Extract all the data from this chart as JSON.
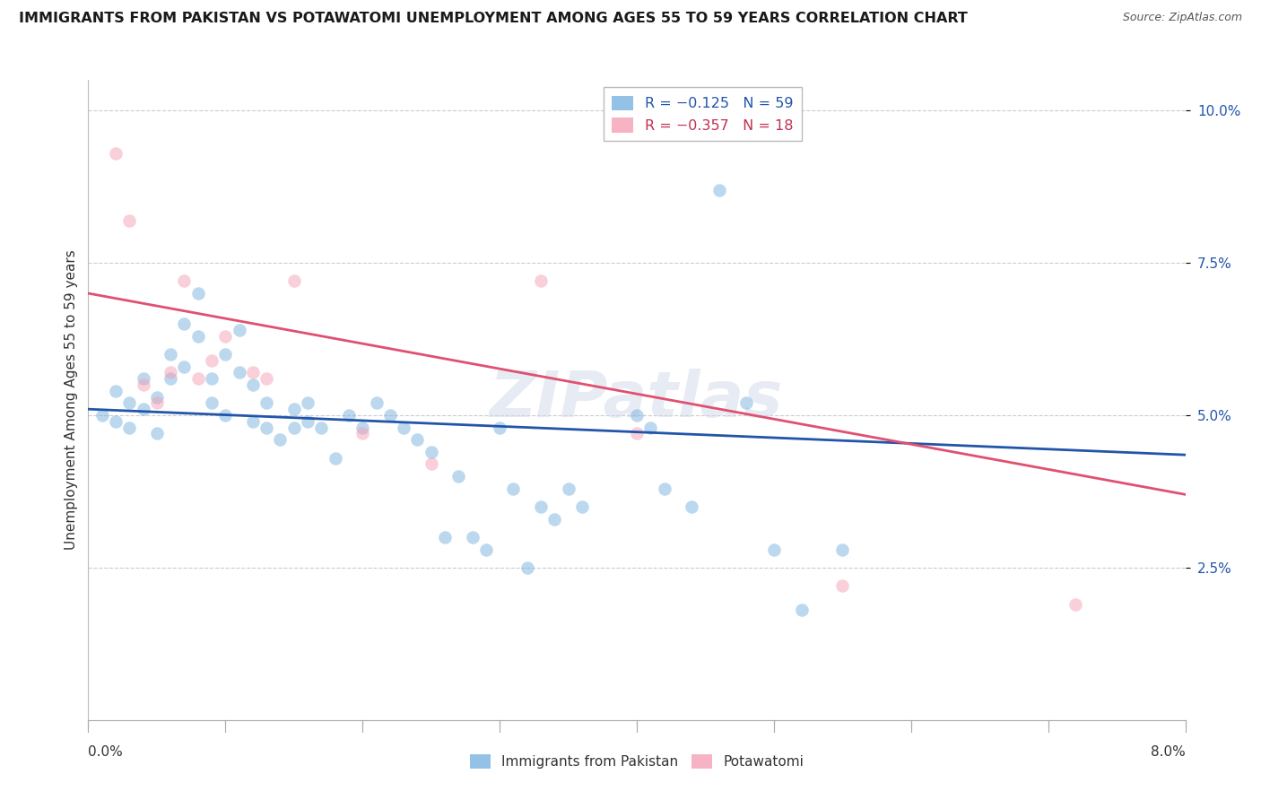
{
  "title": "IMMIGRANTS FROM PAKISTAN VS POTAWATOMI UNEMPLOYMENT AMONG AGES 55 TO 59 YEARS CORRELATION CHART",
  "source": "Source: ZipAtlas.com",
  "ylabel": "Unemployment Among Ages 55 to 59 years",
  "xmin": 0.0,
  "xmax": 0.08,
  "ymin": 0.0,
  "ymax": 0.105,
  "yticks": [
    0.025,
    0.05,
    0.075,
    0.1
  ],
  "ytick_labels": [
    "2.5%",
    "5.0%",
    "7.5%",
    "10.0%"
  ],
  "watermark": "ZIPatlas",
  "blue_scatter": [
    [
      0.001,
      0.05
    ],
    [
      0.002,
      0.054
    ],
    [
      0.002,
      0.049
    ],
    [
      0.003,
      0.052
    ],
    [
      0.003,
      0.048
    ],
    [
      0.004,
      0.056
    ],
    [
      0.004,
      0.051
    ],
    [
      0.005,
      0.053
    ],
    [
      0.005,
      0.047
    ],
    [
      0.006,
      0.06
    ],
    [
      0.006,
      0.056
    ],
    [
      0.007,
      0.065
    ],
    [
      0.007,
      0.058
    ],
    [
      0.008,
      0.07
    ],
    [
      0.008,
      0.063
    ],
    [
      0.009,
      0.056
    ],
    [
      0.009,
      0.052
    ],
    [
      0.01,
      0.06
    ],
    [
      0.01,
      0.05
    ],
    [
      0.011,
      0.064
    ],
    [
      0.011,
      0.057
    ],
    [
      0.012,
      0.055
    ],
    [
      0.012,
      0.049
    ],
    [
      0.013,
      0.052
    ],
    [
      0.013,
      0.048
    ],
    [
      0.014,
      0.046
    ],
    [
      0.015,
      0.051
    ],
    [
      0.015,
      0.048
    ],
    [
      0.016,
      0.052
    ],
    [
      0.016,
      0.049
    ],
    [
      0.017,
      0.048
    ],
    [
      0.018,
      0.043
    ],
    [
      0.019,
      0.05
    ],
    [
      0.02,
      0.048
    ],
    [
      0.021,
      0.052
    ],
    [
      0.022,
      0.05
    ],
    [
      0.023,
      0.048
    ],
    [
      0.024,
      0.046
    ],
    [
      0.025,
      0.044
    ],
    [
      0.026,
      0.03
    ],
    [
      0.027,
      0.04
    ],
    [
      0.028,
      0.03
    ],
    [
      0.029,
      0.028
    ],
    [
      0.03,
      0.048
    ],
    [
      0.031,
      0.038
    ],
    [
      0.032,
      0.025
    ],
    [
      0.033,
      0.035
    ],
    [
      0.034,
      0.033
    ],
    [
      0.035,
      0.038
    ],
    [
      0.036,
      0.035
    ],
    [
      0.04,
      0.05
    ],
    [
      0.041,
      0.048
    ],
    [
      0.042,
      0.038
    ],
    [
      0.044,
      0.035
    ],
    [
      0.046,
      0.087
    ],
    [
      0.048,
      0.052
    ],
    [
      0.05,
      0.028
    ],
    [
      0.052,
      0.018
    ],
    [
      0.055,
      0.028
    ]
  ],
  "pink_scatter": [
    [
      0.002,
      0.093
    ],
    [
      0.003,
      0.082
    ],
    [
      0.004,
      0.055
    ],
    [
      0.005,
      0.052
    ],
    [
      0.006,
      0.057
    ],
    [
      0.007,
      0.072
    ],
    [
      0.008,
      0.056
    ],
    [
      0.009,
      0.059
    ],
    [
      0.01,
      0.063
    ],
    [
      0.012,
      0.057
    ],
    [
      0.013,
      0.056
    ],
    [
      0.015,
      0.072
    ],
    [
      0.02,
      0.047
    ],
    [
      0.025,
      0.042
    ],
    [
      0.033,
      0.072
    ],
    [
      0.04,
      0.047
    ],
    [
      0.055,
      0.022
    ],
    [
      0.072,
      0.019
    ]
  ],
  "blue_line_x": [
    0.0,
    0.08
  ],
  "blue_line_y": [
    0.051,
    0.0435
  ],
  "pink_line_x": [
    0.0,
    0.08
  ],
  "pink_line_y": [
    0.07,
    0.037
  ],
  "blue_scatter_color": "#7ab3e0",
  "pink_scatter_color": "#f5a0b5",
  "blue_line_color": "#2255aa",
  "pink_line_color": "#e05070",
  "grid_color": "#cccccc",
  "background_color": "#ffffff",
  "title_fontsize": 11.5,
  "source_fontsize": 9,
  "ylabel_fontsize": 11,
  "tick_fontsize": 11,
  "marker_size": 110,
  "marker_alpha": 0.5,
  "legend_r_blue": "R = −0.125",
  "legend_n_blue": "N = 59",
  "legend_r_pink": "R = −0.357",
  "legend_n_pink": "N = 18",
  "legend_label_blue": "Immigrants from Pakistan",
  "legend_label_pink": "Potawatomi"
}
